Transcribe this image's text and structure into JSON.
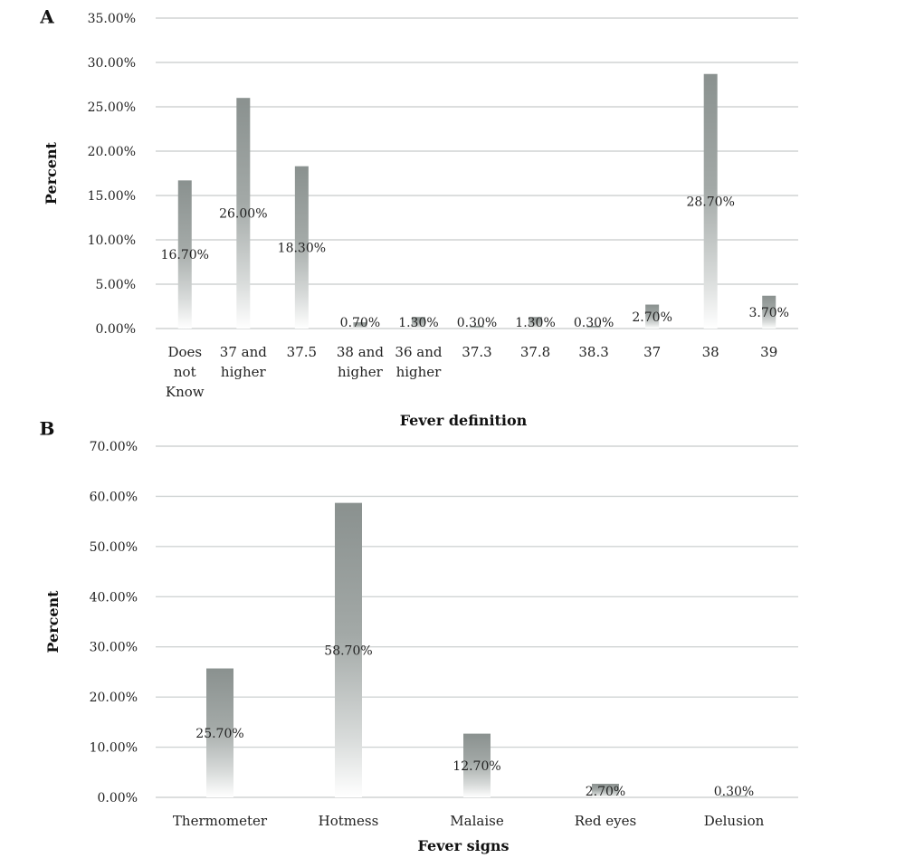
{
  "colors": {
    "bar_top": "#8a918f",
    "bar_bottom": "#ffffff",
    "grid": "#d0d4d4"
  },
  "chart_data": [
    {
      "panel": "A",
      "type": "bar",
      "xlabel": "Fever definition",
      "ylabel": "Percent",
      "ylim": [
        0,
        35
      ],
      "yticks": [
        "0.00%",
        "5.00%",
        "10.00%",
        "15.00%",
        "20.00%",
        "25.00%",
        "30.00%",
        "35.00%"
      ],
      "grid": true,
      "categories": [
        [
          "Does",
          "not",
          "Know"
        ],
        [
          "37 and",
          "higher"
        ],
        [
          "37.5"
        ],
        [
          "38 and",
          "higher"
        ],
        [
          "36 and",
          "higher"
        ],
        [
          "37.3"
        ],
        [
          "37.8"
        ],
        [
          "38.3"
        ],
        [
          "37"
        ],
        [
          "38"
        ],
        [
          "39"
        ]
      ],
      "values": [
        16.7,
        26.0,
        18.3,
        0.7,
        1.3,
        0.3,
        1.3,
        0.3,
        2.7,
        28.7,
        3.7
      ],
      "data_labels": [
        "16.70%",
        "26.00%",
        "18.30%",
        "0.70%",
        "1.30%",
        "0.30%",
        "1.30%",
        "0.30%",
        "2.70%",
        "28.70%",
        "3.70%"
      ]
    },
    {
      "panel": "B",
      "type": "bar",
      "xlabel": "Fever signs",
      "ylabel": "Percent",
      "ylim": [
        0,
        70
      ],
      "yticks": [
        "0.00%",
        "10.00%",
        "20.00%",
        "30.00%",
        "40.00%",
        "50.00%",
        "60.00%",
        "70.00%"
      ],
      "grid": true,
      "categories": [
        [
          "Thermometer"
        ],
        [
          "Hotmess"
        ],
        [
          "Malaise"
        ],
        [
          "Red eyes"
        ],
        [
          "Delusion"
        ]
      ],
      "values": [
        25.7,
        58.7,
        12.7,
        2.7,
        0.3
      ],
      "data_labels": [
        "25.70%",
        "58.70%",
        "12.70%",
        "2.70%",
        "0.30%"
      ]
    }
  ]
}
